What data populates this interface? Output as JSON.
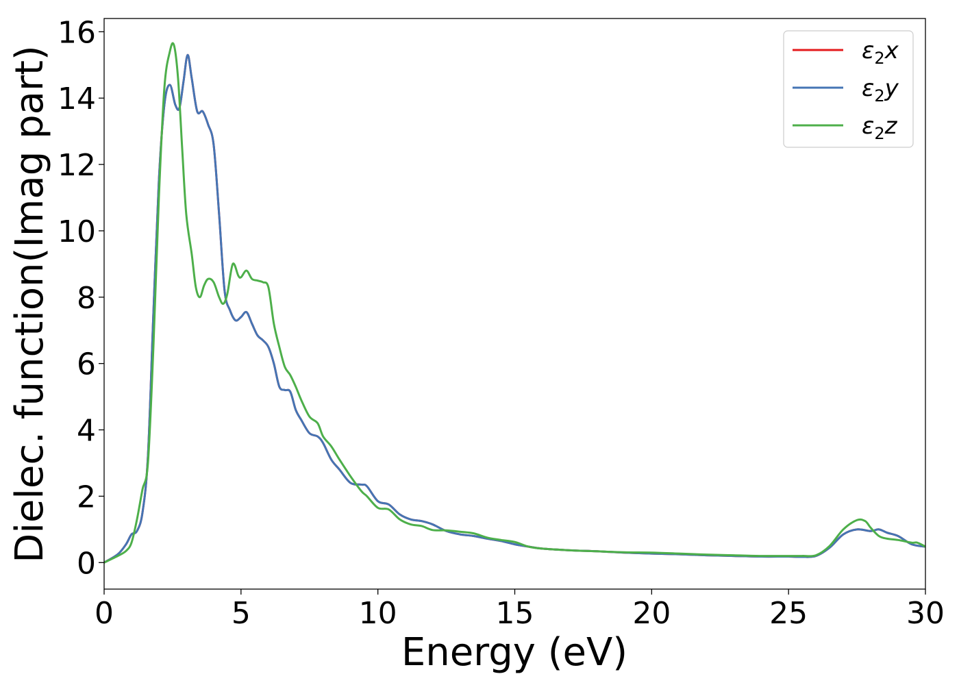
{
  "chart_data": {
    "type": "line",
    "title": "",
    "xlabel": "Energy (eV)",
    "ylabel": "Dielec. function(Imag part)",
    "xlim": [
      0,
      30
    ],
    "ylim": [
      -0.8,
      16.4
    ],
    "xticks": [
      0,
      5,
      10,
      15,
      20,
      25,
      30
    ],
    "xtick_labels": [
      "0",
      "5",
      "10",
      "15",
      "20",
      "25",
      "30"
    ],
    "yticks": [
      0,
      2,
      4,
      6,
      8,
      10,
      12,
      14,
      16
    ],
    "ytick_labels": [
      "0",
      "2",
      "4",
      "6",
      "8",
      "10",
      "12",
      "14",
      "16"
    ],
    "grid": false,
    "legend": "top-right",
    "series": [
      {
        "name": "ε₂x",
        "label_base": "ε",
        "label_sub": "2",
        "label_suffix": "x",
        "color": "#e41a1c",
        "x": [
          0,
          0.5,
          0.8,
          1.0,
          1.2,
          1.4,
          1.6,
          1.8,
          2.0,
          2.2,
          2.4,
          2.6,
          2.75,
          2.9,
          3.05,
          3.2,
          3.4,
          3.6,
          3.8,
          4.0,
          4.2,
          4.4,
          4.6,
          4.8,
          5.0,
          5.2,
          5.4,
          5.6,
          5.8,
          6.0,
          6.2,
          6.4,
          6.6,
          6.8,
          7.0,
          7.2,
          7.5,
          7.8,
          8.0,
          8.3,
          8.6,
          9.0,
          9.4,
          9.6,
          10.0,
          10.4,
          10.8,
          11.2,
          11.6,
          12.0,
          12.5,
          13.0,
          13.5,
          14.0,
          14.5,
          15.0,
          15.5,
          16.0,
          17.0,
          18.0,
          19.0,
          20.0,
          21.0,
          22.0,
          23.0,
          24.0,
          25.0,
          25.5,
          26.0,
          26.5,
          27.0,
          27.5,
          28.0,
          28.3,
          28.6,
          29.0,
          29.5,
          30.0
        ],
        "y": [
          0.0,
          0.25,
          0.55,
          0.85,
          0.95,
          1.5,
          3.2,
          7.5,
          11.5,
          13.8,
          14.4,
          13.8,
          13.7,
          14.5,
          15.3,
          14.6,
          13.6,
          13.6,
          13.2,
          12.6,
          10.5,
          8.2,
          7.6,
          7.3,
          7.4,
          7.55,
          7.2,
          6.85,
          6.7,
          6.5,
          6.0,
          5.3,
          5.2,
          5.15,
          4.6,
          4.3,
          3.9,
          3.8,
          3.6,
          3.1,
          2.8,
          2.4,
          2.35,
          2.3,
          1.85,
          1.75,
          1.45,
          1.3,
          1.25,
          1.15,
          0.95,
          0.85,
          0.8,
          0.72,
          0.65,
          0.55,
          0.48,
          0.42,
          0.37,
          0.34,
          0.3,
          0.27,
          0.25,
          0.22,
          0.2,
          0.18,
          0.18,
          0.17,
          0.2,
          0.45,
          0.85,
          1.0,
          0.95,
          1.0,
          0.9,
          0.8,
          0.55,
          0.48
        ]
      },
      {
        "name": "ε₂y",
        "label_base": "ε",
        "label_sub": "2",
        "label_suffix": "y",
        "color": "#4575b4",
        "x": [
          0,
          0.5,
          0.8,
          1.0,
          1.2,
          1.4,
          1.6,
          1.8,
          2.0,
          2.2,
          2.4,
          2.6,
          2.75,
          2.9,
          3.05,
          3.2,
          3.4,
          3.6,
          3.8,
          4.0,
          4.2,
          4.4,
          4.6,
          4.8,
          5.0,
          5.2,
          5.4,
          5.6,
          5.8,
          6.0,
          6.2,
          6.4,
          6.6,
          6.8,
          7.0,
          7.2,
          7.5,
          7.8,
          8.0,
          8.3,
          8.6,
          9.0,
          9.4,
          9.6,
          10.0,
          10.4,
          10.8,
          11.2,
          11.6,
          12.0,
          12.5,
          13.0,
          13.5,
          14.0,
          14.5,
          15.0,
          15.5,
          16.0,
          17.0,
          18.0,
          19.0,
          20.0,
          21.0,
          22.0,
          23.0,
          24.0,
          25.0,
          25.5,
          26.0,
          26.5,
          27.0,
          27.5,
          28.0,
          28.3,
          28.6,
          29.0,
          29.5,
          30.0
        ],
        "y": [
          0.0,
          0.25,
          0.55,
          0.85,
          0.95,
          1.5,
          3.2,
          7.5,
          11.5,
          13.8,
          14.4,
          13.8,
          13.7,
          14.5,
          15.3,
          14.6,
          13.6,
          13.6,
          13.2,
          12.6,
          10.5,
          8.2,
          7.6,
          7.3,
          7.4,
          7.55,
          7.2,
          6.85,
          6.7,
          6.5,
          6.0,
          5.3,
          5.2,
          5.15,
          4.6,
          4.3,
          3.9,
          3.8,
          3.6,
          3.1,
          2.8,
          2.4,
          2.35,
          2.3,
          1.85,
          1.75,
          1.45,
          1.3,
          1.25,
          1.15,
          0.95,
          0.85,
          0.8,
          0.72,
          0.65,
          0.55,
          0.48,
          0.42,
          0.37,
          0.34,
          0.3,
          0.27,
          0.25,
          0.22,
          0.2,
          0.18,
          0.18,
          0.17,
          0.2,
          0.45,
          0.85,
          1.0,
          0.95,
          1.0,
          0.9,
          0.8,
          0.55,
          0.48
        ]
      },
      {
        "name": "ε₂z",
        "label_base": "ε",
        "label_sub": "2",
        "label_suffix": "z",
        "color": "#4daf4a",
        "x": [
          0,
          0.5,
          0.8,
          1.0,
          1.2,
          1.4,
          1.6,
          1.8,
          2.0,
          2.2,
          2.4,
          2.55,
          2.7,
          2.85,
          3.0,
          3.2,
          3.35,
          3.5,
          3.65,
          3.8,
          4.0,
          4.2,
          4.35,
          4.5,
          4.7,
          4.9,
          5.0,
          5.2,
          5.4,
          5.6,
          5.8,
          6.0,
          6.2,
          6.4,
          6.6,
          6.8,
          7.0,
          7.2,
          7.5,
          7.8,
          8.0,
          8.3,
          8.6,
          9.0,
          9.4,
          9.6,
          10.0,
          10.4,
          10.8,
          11.2,
          11.6,
          12.0,
          12.5,
          13.0,
          13.5,
          14.0,
          14.5,
          15.0,
          15.5,
          16.0,
          17.0,
          18.0,
          19.0,
          20.0,
          21.0,
          22.0,
          23.0,
          24.0,
          25.0,
          25.5,
          26.0,
          26.5,
          27.0,
          27.5,
          27.8,
          28.0,
          28.3,
          28.6,
          29.0,
          29.5,
          29.7,
          30.0
        ],
        "y": [
          0.0,
          0.2,
          0.35,
          0.6,
          1.3,
          2.2,
          3.0,
          6.5,
          11.0,
          14.3,
          15.4,
          15.6,
          14.6,
          12.5,
          10.5,
          9.3,
          8.3,
          8.0,
          8.35,
          8.55,
          8.45,
          8.0,
          7.8,
          8.1,
          9.0,
          8.65,
          8.6,
          8.8,
          8.55,
          8.5,
          8.45,
          8.3,
          7.2,
          6.5,
          5.9,
          5.65,
          5.3,
          4.9,
          4.4,
          4.2,
          3.8,
          3.5,
          3.1,
          2.6,
          2.15,
          2.0,
          1.65,
          1.6,
          1.3,
          1.15,
          1.1,
          0.98,
          0.97,
          0.93,
          0.88,
          0.75,
          0.68,
          0.62,
          0.48,
          0.42,
          0.37,
          0.34,
          0.31,
          0.3,
          0.27,
          0.24,
          0.22,
          0.2,
          0.2,
          0.2,
          0.22,
          0.5,
          1.0,
          1.28,
          1.25,
          1.05,
          0.8,
          0.72,
          0.68,
          0.6,
          0.6,
          0.48
        ]
      }
    ]
  }
}
